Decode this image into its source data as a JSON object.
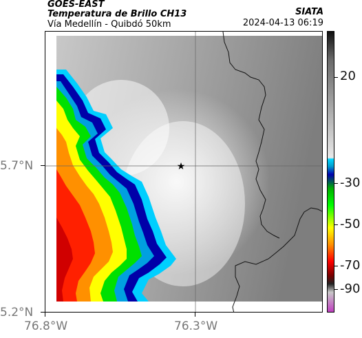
{
  "header": {
    "satellite": "GOES-EAST",
    "product": "Temperatura de Brillo CH13",
    "region": "Vía Medellín - Quibdó 50km",
    "organization": "SIATA",
    "timestamp": "2024-04-13 06:19"
  },
  "map": {
    "lat_labels": [
      "5.7°N",
      "5.2°N"
    ],
    "lon_labels": [
      "76.8°W",
      "76.3°W"
    ],
    "marker": "star-icon"
  },
  "colorbar": {
    "labels": [
      "20",
      "-30",
      "-50",
      "-70",
      "-90"
    ],
    "colors": {
      "warm_gray": "#8a8a8a",
      "light": "#ffffff",
      "cyan": "#00d6ff",
      "blue": "#0000b0",
      "green": "#00e000",
      "yellow": "#ffff00",
      "orange": "#ff9000",
      "red": "#ff0000",
      "dark_red": "#7a0000",
      "magenta": "#c040c0"
    }
  }
}
